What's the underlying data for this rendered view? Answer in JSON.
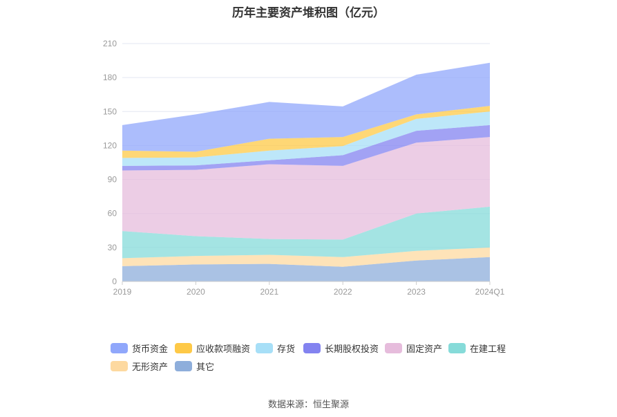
{
  "chart_data": {
    "type": "area",
    "stacked": true,
    "title": "历年主要资产堆积图（亿元）",
    "categories": [
      "2019",
      "2020",
      "2021",
      "2022",
      "2023",
      "2024Q1"
    ],
    "ylim": [
      0,
      210
    ],
    "yticks": [
      0,
      30,
      60,
      90,
      120,
      150,
      180,
      210
    ],
    "grid": true,
    "legend_position": "bottom",
    "series": [
      {
        "name": "其它",
        "color": "#8eaedb",
        "values": [
          13.5,
          15,
          15.5,
          13,
          18.5,
          21.5
        ]
      },
      {
        "name": "无形资产",
        "color": "#fdd9a0",
        "values": [
          7,
          7.5,
          8,
          8.5,
          8.5,
          8.5
        ]
      },
      {
        "name": "在建工程",
        "color": "#86dbd9",
        "values": [
          24,
          17.5,
          14,
          15.5,
          33,
          36
        ]
      },
      {
        "name": "固定资产",
        "color": "#e6bcdc",
        "values": [
          53.5,
          58.5,
          66,
          65,
          62.5,
          61.5
        ]
      },
      {
        "name": "长期股权投资",
        "color": "#8383f0",
        "values": [
          4,
          4,
          3.5,
          9.5,
          10.5,
          10.5
        ]
      },
      {
        "name": "存货",
        "color": "#a7dff7",
        "values": [
          7,
          7,
          8.5,
          8,
          10.5,
          12
        ]
      },
      {
        "name": "应收款项融资",
        "color": "#fec947",
        "values": [
          6.5,
          5,
          10.5,
          8,
          4,
          5
        ]
      },
      {
        "name": "货币资金",
        "color": "#90a7fb",
        "values": [
          22.5,
          33,
          32.5,
          27,
          35,
          38
        ]
      }
    ]
  },
  "legend": [
    {
      "label": "货币资金",
      "color": "#90a7fb"
    },
    {
      "label": "应收款项融资",
      "color": "#fec947"
    },
    {
      "label": "存货",
      "color": "#a7dff7"
    },
    {
      "label": "长期股权投资",
      "color": "#8383f0"
    },
    {
      "label": "固定资产",
      "color": "#e6bcdc"
    },
    {
      "label": "在建工程",
      "color": "#86dbd9"
    },
    {
      "label": "无形资产",
      "color": "#fdd9a0"
    },
    {
      "label": "其它",
      "color": "#8eaedb"
    }
  ],
  "source": "数据来源：恒生聚源"
}
